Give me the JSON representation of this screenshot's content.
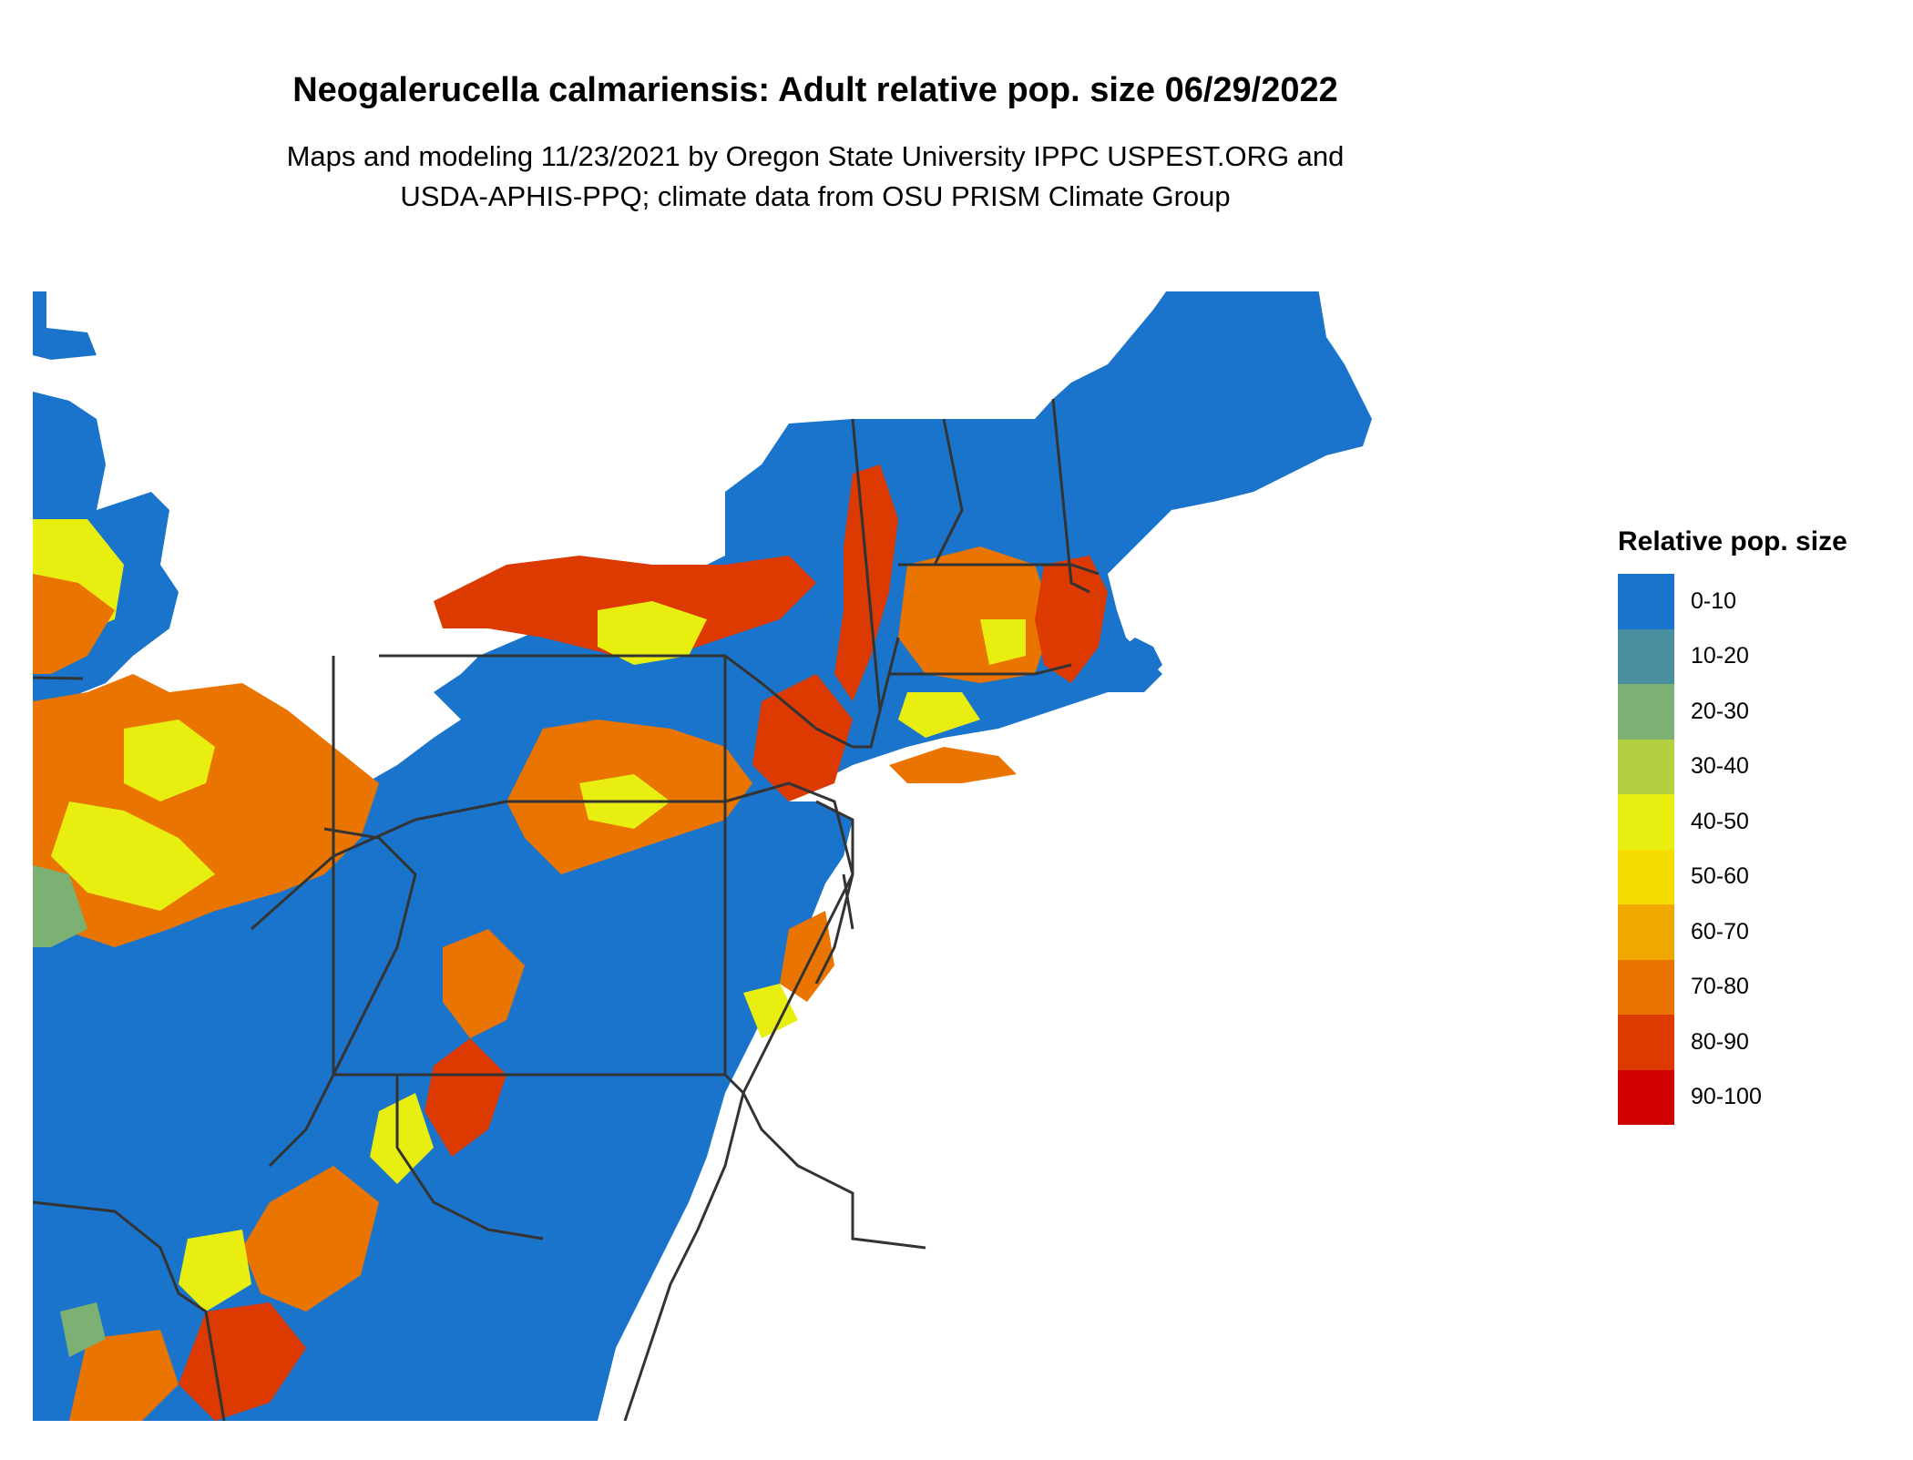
{
  "header": {
    "title": "Neogalerucella calmariensis: Adult relative pop. size 06/29/2022",
    "subtitle_line1": "Maps and modeling 11/23/2021 by Oregon State University IPPC USPEST.ORG and",
    "subtitle_line2": "USDA-APHIS-PPQ; climate data from OSU PRISM Climate Group"
  },
  "legend": {
    "title": "Relative pop. size",
    "items": [
      {
        "label": "0-10",
        "color": "#1a74cc"
      },
      {
        "label": "10-20",
        "color": "#4a8fa0"
      },
      {
        "label": "20-30",
        "color": "#7db073"
      },
      {
        "label": "30-40",
        "color": "#b4d040"
      },
      {
        "label": "40-50",
        "color": "#e8ef10"
      },
      {
        "label": "50-60",
        "color": "#f7dc00"
      },
      {
        "label": "60-70",
        "color": "#f0a800"
      },
      {
        "label": "70-80",
        "color": "#ea7400"
      },
      {
        "label": "80-90",
        "color": "#dc3a00"
      },
      {
        "label": "90-100",
        "color": "#d00000"
      }
    ]
  },
  "colors": {
    "water": "#ffffff",
    "land_low": "#1a74cc",
    "border": "#333333"
  }
}
